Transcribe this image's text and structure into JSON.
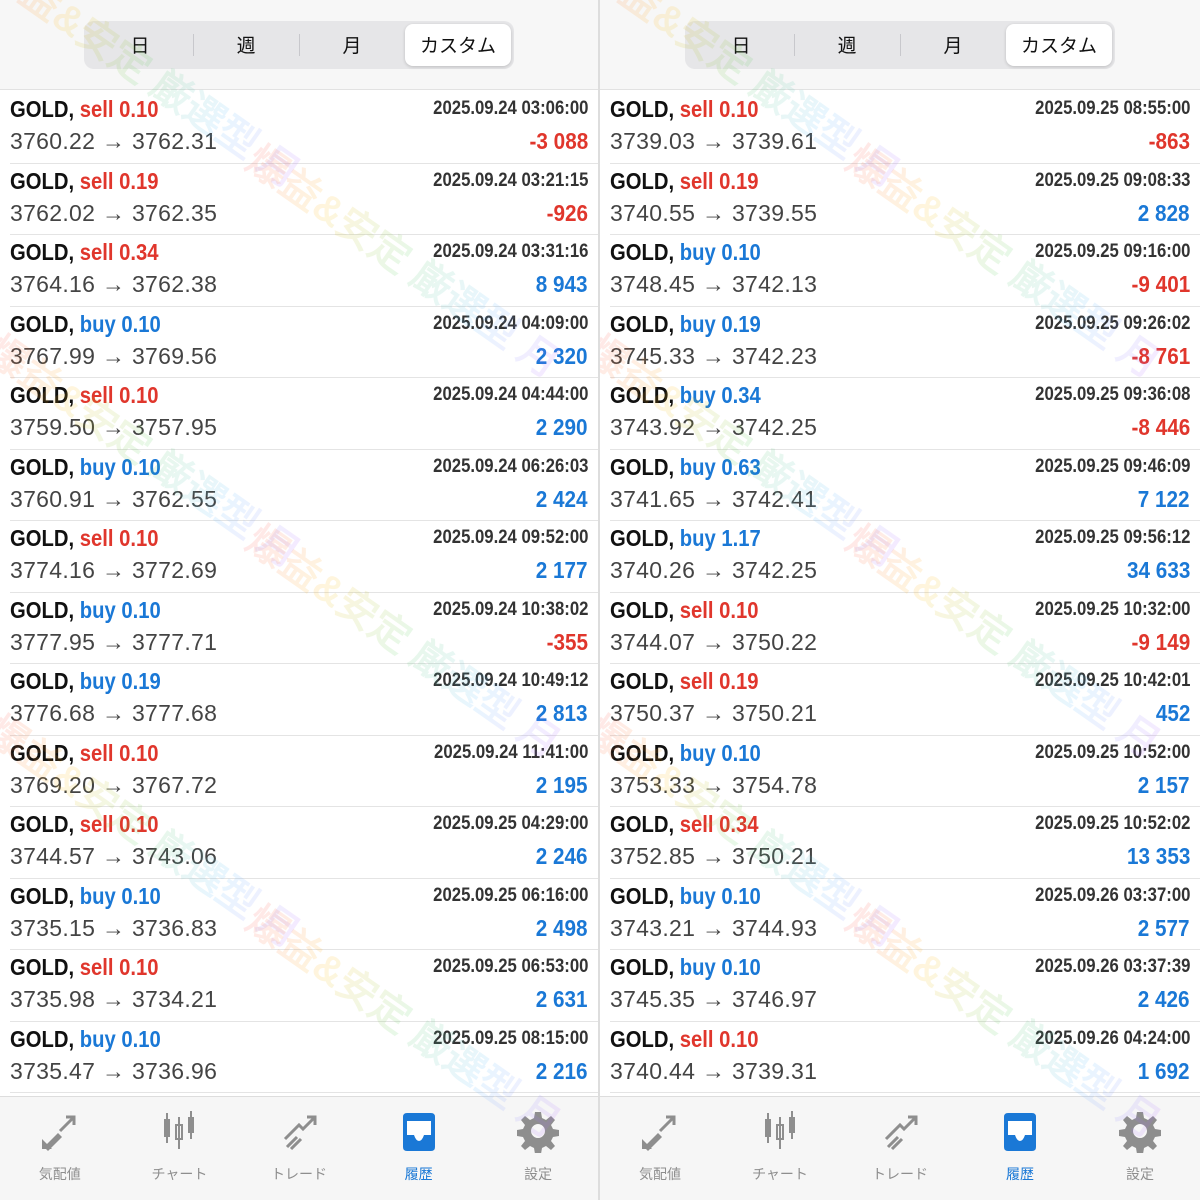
{
  "segment": [
    "日",
    "週",
    "月",
    "カスタム"
  ],
  "segment_active": 3,
  "colors": {
    "sell": "#e0362c",
    "buy": "#1a78d6",
    "loss": "#e0362c",
    "profit": "#1a78d6",
    "accent": "#1a78d6"
  },
  "watermark": "爆益&安定 厳選型 月",
  "tabs": [
    {
      "label": "気配値",
      "icon": "quotes-arrows-icon"
    },
    {
      "label": "チャート",
      "icon": "candlestick-icon"
    },
    {
      "label": "トレード",
      "icon": "trade-trend-icon"
    },
    {
      "label": "履歴",
      "icon": "history-inbox-icon"
    },
    {
      "label": "設定",
      "icon": "gear-icon"
    }
  ],
  "tab_active": 3,
  "panels": [
    {
      "rows": [
        {
          "symbol": "GOLD,",
          "side": "sell",
          "volume": "0.10",
          "open": "3760.22",
          "close": "3762.31",
          "time": "2025.09.24 03:06:00",
          "profit": "-3 088"
        },
        {
          "symbol": "GOLD,",
          "side": "sell",
          "volume": "0.19",
          "open": "3762.02",
          "close": "3762.35",
          "time": "2025.09.24 03:21:15",
          "profit": "-926"
        },
        {
          "symbol": "GOLD,",
          "side": "sell",
          "volume": "0.34",
          "open": "3764.16",
          "close": "3762.38",
          "time": "2025.09.24 03:31:16",
          "profit": "8 943"
        },
        {
          "symbol": "GOLD,",
          "side": "buy",
          "volume": "0.10",
          "open": "3767.99",
          "close": "3769.56",
          "time": "2025.09.24 04:09:00",
          "profit": "2 320"
        },
        {
          "symbol": "GOLD,",
          "side": "sell",
          "volume": "0.10",
          "open": "3759.50",
          "close": "3757.95",
          "time": "2025.09.24 04:44:00",
          "profit": "2 290"
        },
        {
          "symbol": "GOLD,",
          "side": "buy",
          "volume": "0.10",
          "open": "3760.91",
          "close": "3762.55",
          "time": "2025.09.24 06:26:03",
          "profit": "2 424"
        },
        {
          "symbol": "GOLD,",
          "side": "sell",
          "volume": "0.10",
          "open": "3774.16",
          "close": "3772.69",
          "time": "2025.09.24 09:52:00",
          "profit": "2 177"
        },
        {
          "symbol": "GOLD,",
          "side": "buy",
          "volume": "0.10",
          "open": "3777.95",
          "close": "3777.71",
          "time": "2025.09.24 10:38:02",
          "profit": "-355"
        },
        {
          "symbol": "GOLD,",
          "side": "buy",
          "volume": "0.19",
          "open": "3776.68",
          "close": "3777.68",
          "time": "2025.09.24 10:49:12",
          "profit": "2 813"
        },
        {
          "symbol": "GOLD,",
          "side": "sell",
          "volume": "0.10",
          "open": "3769.20",
          "close": "3767.72",
          "time": "2025.09.24 11:41:00",
          "profit": "2 195"
        },
        {
          "symbol": "GOLD,",
          "side": "sell",
          "volume": "0.10",
          "open": "3744.57",
          "close": "3743.06",
          "time": "2025.09.25 04:29:00",
          "profit": "2 246"
        },
        {
          "symbol": "GOLD,",
          "side": "buy",
          "volume": "0.10",
          "open": "3735.15",
          "close": "3736.83",
          "time": "2025.09.25 06:16:00",
          "profit": "2 498"
        },
        {
          "symbol": "GOLD,",
          "side": "sell",
          "volume": "0.10",
          "open": "3735.98",
          "close": "3734.21",
          "time": "2025.09.25 06:53:00",
          "profit": "2 631"
        },
        {
          "symbol": "GOLD,",
          "side": "buy",
          "volume": "0.10",
          "open": "3735.47",
          "close": "3736.96",
          "time": "2025.09.25 08:15:00",
          "profit": "2 216"
        }
      ]
    },
    {
      "rows": [
        {
          "symbol": "GOLD,",
          "side": "sell",
          "volume": "0.10",
          "open": "3739.03",
          "close": "3739.61",
          "time": "2025.09.25 08:55:00",
          "profit": "-863"
        },
        {
          "symbol": "GOLD,",
          "side": "sell",
          "volume": "0.19",
          "open": "3740.55",
          "close": "3739.55",
          "time": "2025.09.25 09:08:33",
          "profit": "2 828"
        },
        {
          "symbol": "GOLD,",
          "side": "buy",
          "volume": "0.10",
          "open": "3748.45",
          "close": "3742.13",
          "time": "2025.09.25 09:16:00",
          "profit": "-9 401"
        },
        {
          "symbol": "GOLD,",
          "side": "buy",
          "volume": "0.19",
          "open": "3745.33",
          "close": "3742.23",
          "time": "2025.09.25 09:26:02",
          "profit": "-8 761"
        },
        {
          "symbol": "GOLD,",
          "side": "buy",
          "volume": "0.34",
          "open": "3743.92",
          "close": "3742.25",
          "time": "2025.09.25 09:36:08",
          "profit": "-8 446"
        },
        {
          "symbol": "GOLD,",
          "side": "buy",
          "volume": "0.63",
          "open": "3741.65",
          "close": "3742.41",
          "time": "2025.09.25 09:46:09",
          "profit": "7 122"
        },
        {
          "symbol": "GOLD,",
          "side": "buy",
          "volume": "1.17",
          "open": "3740.26",
          "close": "3742.25",
          "time": "2025.09.25 09:56:12",
          "profit": "34 633"
        },
        {
          "symbol": "GOLD,",
          "side": "sell",
          "volume": "0.10",
          "open": "3744.07",
          "close": "3750.22",
          "time": "2025.09.25 10:32:00",
          "profit": "-9 149"
        },
        {
          "symbol": "GOLD,",
          "side": "sell",
          "volume": "0.19",
          "open": "3750.37",
          "close": "3750.21",
          "time": "2025.09.25 10:42:01",
          "profit": "452"
        },
        {
          "symbol": "GOLD,",
          "side": "buy",
          "volume": "0.10",
          "open": "3753.33",
          "close": "3754.78",
          "time": "2025.09.25 10:52:00",
          "profit": "2 157"
        },
        {
          "symbol": "GOLD,",
          "side": "sell",
          "volume": "0.34",
          "open": "3752.85",
          "close": "3750.21",
          "time": "2025.09.25 10:52:02",
          "profit": "13 353"
        },
        {
          "symbol": "GOLD,",
          "side": "buy",
          "volume": "0.10",
          "open": "3743.21",
          "close": "3744.93",
          "time": "2025.09.26 03:37:00",
          "profit": "2 577"
        },
        {
          "symbol": "GOLD,",
          "side": "buy",
          "volume": "0.10",
          "open": "3745.35",
          "close": "3746.97",
          "time": "2025.09.26 03:37:39",
          "profit": "2 426"
        },
        {
          "symbol": "GOLD,",
          "side": "sell",
          "volume": "0.10",
          "open": "3740.44",
          "close": "3739.31",
          "time": "2025.09.26 04:24:00",
          "profit": "1 692"
        }
      ]
    }
  ]
}
